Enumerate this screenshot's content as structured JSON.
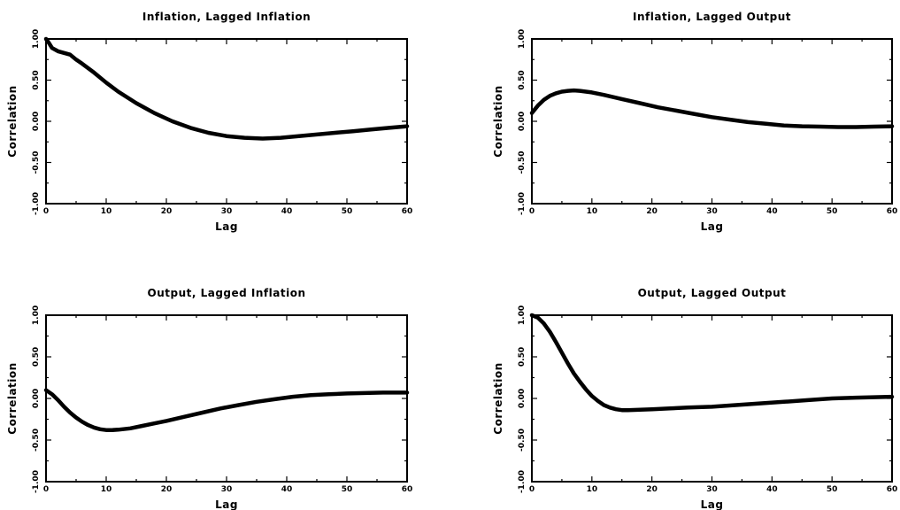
{
  "chart_data": [
    {
      "type": "line",
      "title": "Inflation, Lagged Inflation",
      "xlabel": "Lag",
      "ylabel": "Correlation",
      "xlim": [
        0,
        60
      ],
      "ylim": [
        -1,
        1
      ],
      "xticks": [
        "0",
        "10",
        "20",
        "30",
        "40",
        "50",
        "60"
      ],
      "yticks": [
        "-1.00",
        "-0.50",
        "0.00",
        "0.50",
        "1.00"
      ],
      "grid": false,
      "series": [
        {
          "x": [
            0,
            0.5,
            1,
            2,
            3,
            4,
            5,
            6,
            8,
            10,
            12,
            15,
            18,
            21,
            24,
            27,
            30,
            33,
            36,
            39,
            42,
            45,
            48,
            51,
            54,
            57,
            60
          ],
          "y": [
            1.0,
            0.95,
            0.89,
            0.85,
            0.83,
            0.81,
            0.75,
            0.7,
            0.59,
            0.47,
            0.36,
            0.22,
            0.1,
            0.0,
            -0.08,
            -0.14,
            -0.18,
            -0.2,
            -0.21,
            -0.2,
            -0.18,
            -0.16,
            -0.14,
            -0.12,
            -0.1,
            -0.08,
            -0.06
          ]
        }
      ]
    },
    {
      "type": "line",
      "title": "Inflation, Lagged Output",
      "xlabel": "Lag",
      "ylabel": "Correlation",
      "xlim": [
        0,
        60
      ],
      "ylim": [
        -1,
        1
      ],
      "xticks": [
        "0",
        "10",
        "20",
        "30",
        "40",
        "50",
        "60"
      ],
      "yticks": [
        "-1.00",
        "-0.50",
        "0.00",
        "0.50",
        "1.00"
      ],
      "grid": false,
      "series": [
        {
          "x": [
            0,
            1,
            2,
            3,
            4,
            5,
            6,
            7,
            8,
            10,
            12,
            15,
            18,
            21,
            24,
            27,
            30,
            33,
            36,
            39,
            42,
            45,
            48,
            51,
            54,
            57,
            60
          ],
          "y": [
            0.1,
            0.19,
            0.26,
            0.31,
            0.34,
            0.36,
            0.37,
            0.375,
            0.37,
            0.35,
            0.32,
            0.27,
            0.22,
            0.17,
            0.13,
            0.09,
            0.05,
            0.02,
            -0.01,
            -0.03,
            -0.05,
            -0.06,
            -0.065,
            -0.07,
            -0.07,
            -0.065,
            -0.06
          ]
        }
      ]
    },
    {
      "type": "line",
      "title": "Output, Lagged Inflation",
      "xlabel": "Lag",
      "ylabel": "Correlation",
      "xlim": [
        0,
        60
      ],
      "ylim": [
        -1,
        1
      ],
      "xticks": [
        "0",
        "10",
        "20",
        "30",
        "40",
        "50",
        "60"
      ],
      "yticks": [
        "-1.00",
        "-0.50",
        "0.00",
        "0.50",
        "1.00"
      ],
      "grid": false,
      "series": [
        {
          "x": [
            0,
            1,
            2,
            3,
            4,
            5,
            6,
            7,
            8,
            9,
            10,
            11,
            12,
            14,
            16,
            18,
            20,
            23,
            26,
            29,
            32,
            35,
            38,
            41,
            44,
            47,
            50,
            53,
            56,
            60
          ],
          "y": [
            0.1,
            0.05,
            -0.02,
            -0.1,
            -0.17,
            -0.23,
            -0.28,
            -0.32,
            -0.35,
            -0.37,
            -0.38,
            -0.38,
            -0.375,
            -0.36,
            -0.33,
            -0.3,
            -0.27,
            -0.22,
            -0.17,
            -0.12,
            -0.08,
            -0.04,
            -0.01,
            0.02,
            0.04,
            0.05,
            0.06,
            0.065,
            0.07,
            0.07
          ]
        }
      ]
    },
    {
      "type": "line",
      "title": "Output, Lagged Output",
      "xlabel": "Lag",
      "ylabel": "Correlation",
      "xlim": [
        0,
        60
      ],
      "ylim": [
        -1,
        1
      ],
      "xticks": [
        "0",
        "10",
        "20",
        "30",
        "40",
        "50",
        "60"
      ],
      "yticks": [
        "-1.00",
        "-0.50",
        "0.00",
        "0.50",
        "1.00"
      ],
      "grid": false,
      "series": [
        {
          "x": [
            0,
            1,
            2,
            3,
            4,
            5,
            6,
            7,
            8,
            9,
            10,
            11,
            12,
            13,
            14,
            15,
            16,
            18,
            20,
            23,
            26,
            30,
            34,
            38,
            42,
            46,
            50,
            54,
            57,
            60
          ],
          "y": [
            1.0,
            0.97,
            0.9,
            0.8,
            0.68,
            0.55,
            0.42,
            0.3,
            0.2,
            0.11,
            0.03,
            -0.03,
            -0.08,
            -0.11,
            -0.13,
            -0.14,
            -0.14,
            -0.135,
            -0.13,
            -0.12,
            -0.11,
            -0.1,
            -0.08,
            -0.06,
            -0.04,
            -0.02,
            0.0,
            0.01,
            0.015,
            0.02
          ]
        }
      ]
    }
  ]
}
